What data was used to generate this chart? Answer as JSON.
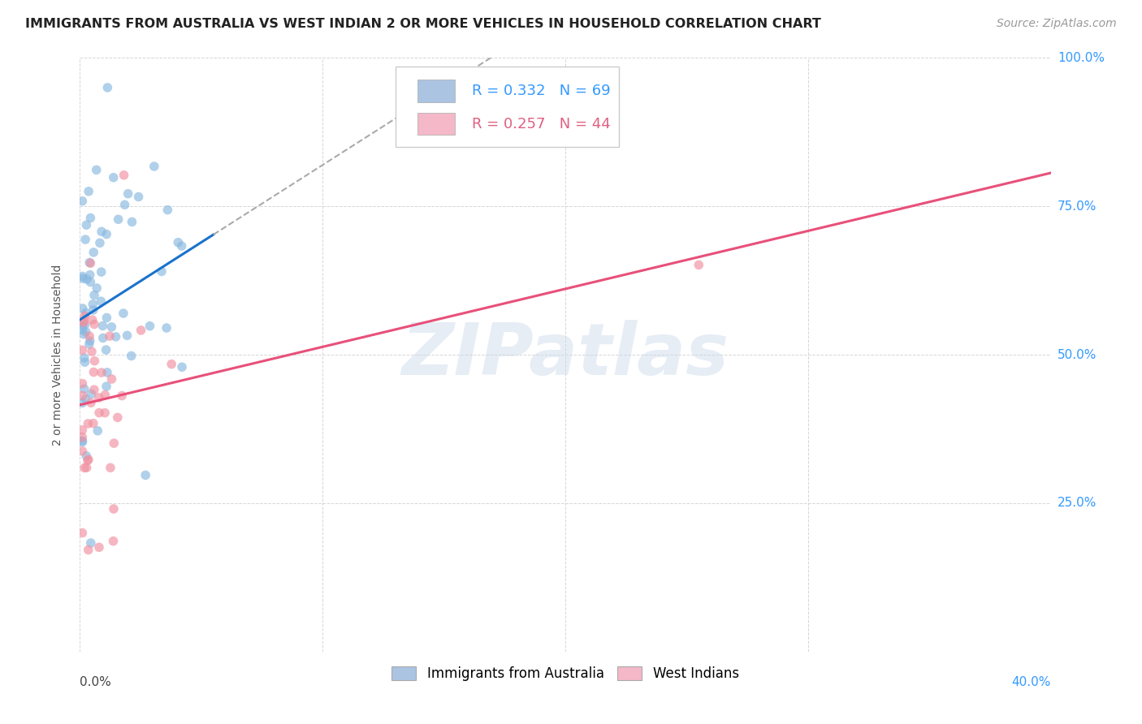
{
  "title": "IMMIGRANTS FROM AUSTRALIA VS WEST INDIAN 2 OR MORE VEHICLES IN HOUSEHOLD CORRELATION CHART",
  "source": "Source: ZipAtlas.com",
  "ylabel": "2 or more Vehicles in Household",
  "ytick_positions": [
    0.0,
    0.25,
    0.5,
    0.75,
    1.0
  ],
  "ytick_labels": [
    "",
    "25.0%",
    "50.0%",
    "75.0%",
    "100.0%"
  ],
  "xtick_left_label": "0.0%",
  "xtick_right_label": "40.0%",
  "legend_color1": "#aac4e2",
  "legend_color2": "#f4b8c8",
  "scatter_color1": "#88b8e0",
  "scatter_color2": "#f090a0",
  "line_color1": "#1a72cc",
  "line_color2": "#e8507a",
  "dash_color": "#aaaaaa",
  "watermark_text": "ZIPatlas",
  "watermark_color": "#c8d8ea",
  "legend_R1": "0.332",
  "legend_N1": "69",
  "legend_R2": "0.257",
  "legend_N2": "44",
  "legend_text_color": "#3399ff",
  "legend_text_color2": "#e06080",
  "R1": 0.332,
  "N1": 69,
  "R2": 0.257,
  "N2": 44,
  "xlim": [
    0.0,
    0.4
  ],
  "ylim": [
    0.0,
    1.0
  ],
  "title_fontsize": 11.5,
  "source_fontsize": 10,
  "axis_label_fontsize": 10,
  "tick_label_fontsize": 11,
  "legend_fontsize": 13,
  "scatter_size": 70,
  "scatter_alpha": 0.65
}
